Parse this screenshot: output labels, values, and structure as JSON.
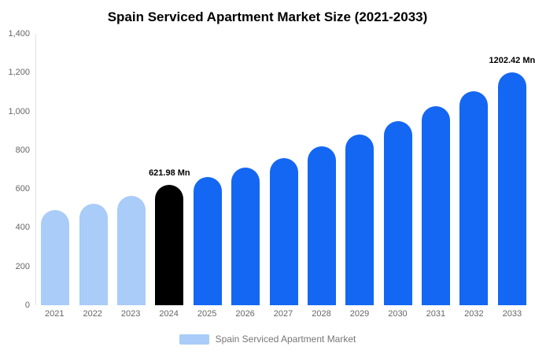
{
  "title": "Spain Serviced Apartment Market Size (2021-2033)",
  "legend": {
    "label": "Spain Serviced Apartment Market",
    "swatch_color": "#A9CCF8"
  },
  "colors": {
    "light_blue": "#A9CCF8",
    "highlight_black": "#000000",
    "bright_blue": "#1467F2",
    "axis_text": "#666666"
  },
  "chart_data": {
    "type": "bar",
    "title": "Spain Serviced Apartment Market Size (2021-2033)",
    "xlabel": "",
    "ylabel": "",
    "categories": [
      "2021",
      "2022",
      "2023",
      "2024",
      "2025",
      "2026",
      "2027",
      "2028",
      "2029",
      "2030",
      "2031",
      "2032",
      "2033"
    ],
    "values": [
      490,
      525,
      565,
      621.98,
      660,
      710,
      760,
      820,
      880,
      950,
      1025,
      1105,
      1202.42
    ],
    "bar_colors": [
      "#A9CCF8",
      "#A9CCF8",
      "#A9CCF8",
      "#000000",
      "#1467F2",
      "#1467F2",
      "#1467F2",
      "#1467F2",
      "#1467F2",
      "#1467F2",
      "#1467F2",
      "#1467F2",
      "#1467F2"
    ],
    "annotations": [
      {
        "category": "2024",
        "text": "621.98 Mn"
      },
      {
        "category": "2033",
        "text": "1202.42 Mn"
      }
    ],
    "ylim": [
      0,
      1400
    ],
    "yticks": [
      {
        "value": 0,
        "label": "0"
      },
      {
        "value": 200,
        "label": "200"
      },
      {
        "value": 400,
        "label": "400"
      },
      {
        "value": 600,
        "label": "600"
      },
      {
        "value": 800,
        "label": "800"
      },
      {
        "value": 1000,
        "label": "1,000"
      },
      {
        "value": 1200,
        "label": "1,200"
      },
      {
        "value": 1400,
        "label": "1,400"
      }
    ],
    "grid": false,
    "legend_position": "bottom"
  }
}
